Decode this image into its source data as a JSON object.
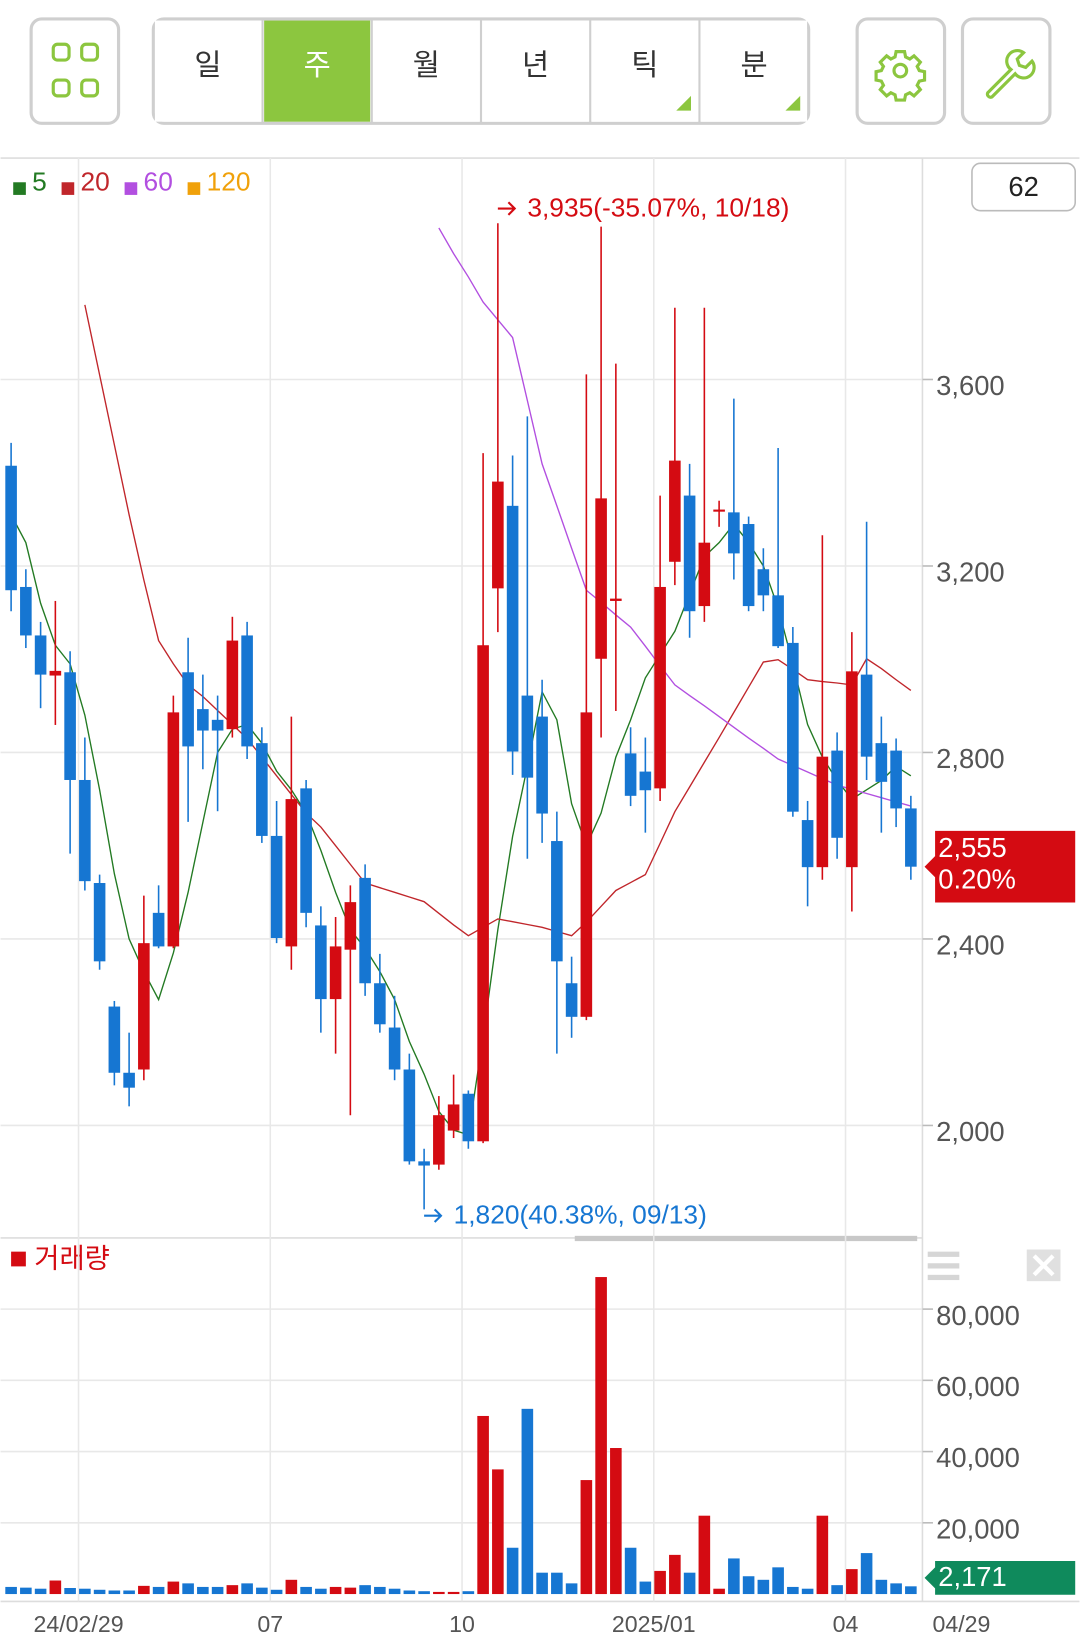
{
  "toolbar": {
    "tabs": [
      "일",
      "주",
      "월",
      "년",
      "틱",
      "분"
    ],
    "active": 1
  },
  "chart_data": {
    "type": "candlestick",
    "categories": [
      null,
      null,
      null,
      null,
      null,
      "24/02/29",
      null,
      null,
      null,
      null,
      null,
      null,
      null,
      null,
      null,
      null,
      null,
      null,
      "07",
      null,
      null,
      null,
      null,
      null,
      null,
      null,
      null,
      null,
      null,
      null,
      null,
      "10",
      null,
      null,
      null,
      null,
      null,
      null,
      null,
      null,
      null,
      null,
      null,
      null,
      "2025/01",
      null,
      null,
      null,
      null,
      null,
      null,
      null,
      null,
      null,
      null,
      null,
      null,
      "04",
      null,
      null,
      null,
      "04/29"
    ],
    "open": [
      3415,
      3155,
      3051,
      2965,
      2972,
      2741,
      2520,
      2255,
      2113,
      2120,
      2456,
      2384,
      2972,
      2893,
      2870,
      2850,
      3051,
      2820,
      2621,
      2384,
      2723,
      2429,
      2271,
      2377,
      2531,
      2305,
      2210,
      2120,
      1923,
      1916,
      1989,
      2068,
      1966,
      3152,
      3329,
      2922,
      2877,
      2610,
      2305,
      2233,
      3001,
      3125,
      2798,
      2759,
      2723,
      3209,
      3351,
      3114,
      3317,
      3315,
      3290,
      3193,
      3137,
      3035,
      2655,
      2554,
      2804,
      2554,
      2967,
      2820,
      2804,
      2680
    ],
    "high": [
      3464,
      3193,
      3080,
      3125,
      3017,
      2832,
      2538,
      2267,
      2199,
      2493,
      2515,
      2922,
      3046,
      2967,
      2922,
      3091,
      3080,
      2854,
      2696,
      2877,
      2741,
      2470,
      2447,
      2515,
      2560,
      2368,
      2278,
      2154,
      1950,
      2063,
      2109,
      2075,
      3442,
      3935,
      3437,
      3521,
      2956,
      2673,
      2362,
      3611,
      3928,
      3634,
      2854,
      2832,
      3351,
      3754,
      3419,
      3754,
      3340,
      3559,
      3306,
      3238,
      3453,
      3069,
      2696,
      3266,
      2843,
      3058,
      3295,
      2877,
      2830,
      2707
    ],
    "low": [
      3103,
      3024,
      2895,
      2859,
      2583,
      2504,
      2334,
      2086,
      2041,
      2097,
      2380,
      2380,
      2651,
      2764,
      2674,
      2832,
      2786,
      2606,
      2391,
      2334,
      2425,
      2199,
      2154,
      2022,
      2278,
      2199,
      2097,
      1916,
      1820,
      1905,
      1973,
      1950,
      1962,
      3058,
      2752,
      2572,
      2606,
      2154,
      2188,
      2226,
      2832,
      2889,
      2685,
      2628,
      2696,
      3159,
      3046,
      3080,
      3284,
      3171,
      3103,
      3103,
      3024,
      2662,
      2470,
      2527,
      2572,
      2459,
      2741,
      2628,
      2640,
      2527
    ],
    "close": [
      3148,
      3051,
      2967,
      2975,
      2741,
      2524,
      2352,
      2113,
      2081,
      2391,
      2384,
      2886,
      2813,
      2847,
      2847,
      3040,
      2813,
      2621,
      2402,
      2700,
      2456,
      2271,
      2384,
      2479,
      2305,
      2217,
      2120,
      1923,
      1914,
      2022,
      2045,
      1966,
      3030,
      3381,
      2802,
      2746,
      2669,
      2352,
      2233,
      2886,
      3345,
      3130,
      2707,
      2719,
      3155,
      3426,
      3103,
      3250,
      3321,
      3227,
      3114,
      3137,
      3028,
      2673,
      2554,
      2791,
      2617,
      2974,
      2791,
      2737,
      2680,
      2555
    ],
    "up_color": "#d40b12",
    "down_color": "#1676d2",
    "ylim": [
      1770,
      4075
    ],
    "yticks": [
      {
        "value": 2000,
        "label": "2,000"
      },
      {
        "value": 2400,
        "label": "2,400"
      },
      {
        "value": 2800,
        "label": "2,800"
      },
      {
        "value": 3200,
        "label": "3,200"
      },
      {
        "value": 3600,
        "label": "3,600"
      }
    ],
    "grid": true,
    "moving_averages": [
      {
        "name": "5",
        "color": "#237a23",
        "values": [
          3310,
          3250,
          3120,
          3030,
          2990,
          2880,
          2720,
          2540,
          2400,
          2330,
          2270,
          2370,
          2500,
          2650,
          2800,
          2850,
          2860,
          2820,
          2760,
          2720,
          2670,
          2590,
          2500,
          2420,
          2380,
          2330,
          2270,
          2180,
          2110,
          2030,
          1990,
          1980,
          2190,
          2420,
          2620,
          2770,
          2930,
          2870,
          2690,
          2600,
          2670,
          2790,
          2870,
          2960,
          3010,
          3060,
          3140,
          3220,
          3250,
          3290,
          3250,
          3200,
          3110,
          2990,
          2860,
          2790,
          2740,
          2700,
          2720,
          2740,
          2770,
          2750
        ]
      },
      {
        "name": "20",
        "color": "#c0262b",
        "values": [
          null,
          null,
          null,
          null,
          null,
          3760,
          3610,
          3460,
          3310,
          3170,
          3040,
          2990,
          2945,
          2920,
          2890,
          2860,
          2830,
          2790,
          2750,
          2710,
          2670,
          2640,
          2600,
          2560,
          2520,
          2510,
          2500,
          2490,
          2480,
          2455,
          2430,
          2407,
          2425,
          2443,
          2437,
          2431,
          2425,
          2416,
          2407,
          2436,
          2470,
          2504,
          2521,
          2538,
          2605,
          2673,
          2726,
          2779,
          2832,
          2886,
          2940,
          2994,
          2999,
          2978,
          2956,
          2952,
          2949,
          2945,
          3001,
          2980,
          2956,
          2933
        ]
      },
      {
        "name": "60",
        "color": "#b24fe0",
        "values": [
          null,
          null,
          null,
          null,
          null,
          null,
          null,
          null,
          null,
          null,
          null,
          null,
          null,
          null,
          null,
          null,
          null,
          null,
          null,
          null,
          null,
          null,
          null,
          null,
          null,
          null,
          null,
          null,
          null,
          3925,
          3870,
          3820,
          3766,
          3728,
          3690,
          3555,
          3419,
          3329,
          3238,
          3148,
          3122,
          3095,
          3069,
          3028,
          2986,
          2945,
          2922,
          2900,
          2877,
          2854,
          2831,
          2809,
          2786,
          2772,
          2758,
          2744,
          2730,
          2721,
          2712,
          2703,
          2694,
          2685
        ]
      },
      {
        "name": "120",
        "color": "#f0a10a",
        "values": [
          null,
          null,
          null,
          null,
          null,
          null,
          null,
          null,
          null,
          null,
          null,
          null,
          null,
          null,
          null,
          null,
          null,
          null,
          null,
          null,
          null,
          null,
          null,
          null,
          null,
          null,
          null,
          null,
          null,
          null,
          null,
          null,
          null,
          null,
          null,
          null,
          null,
          null,
          null,
          null,
          null,
          null,
          null,
          null,
          null,
          null,
          null,
          null,
          null,
          null,
          null,
          null,
          null,
          null,
          null,
          null,
          null,
          null,
          null,
          null,
          null,
          null
        ]
      }
    ],
    "annotations": [
      {
        "text": "3,935(-35.07%, 10/18)",
        "color": "#d40b12"
      },
      {
        "text": "1,820(40.38%, 09/13)",
        "color": "#1676d2"
      }
    ],
    "visible_count": 62,
    "current": {
      "price": {
        "value": 2555,
        "label": "2,555"
      },
      "change": "0.20%",
      "color": "#d40b12"
    },
    "volume": {
      "title": "거래량",
      "values": [
        2000,
        1800,
        1500,
        3800,
        1700,
        1500,
        1200,
        1000,
        1000,
        2300,
        2000,
        3500,
        3000,
        2000,
        2000,
        2500,
        3000,
        1800,
        1200,
        4000,
        2000,
        1500,
        2000,
        1800,
        2500,
        2000,
        1500,
        1000,
        800,
        600,
        600,
        800,
        50000,
        35000,
        13000,
        52000,
        6000,
        6000,
        3000,
        32000,
        89000,
        41000,
        13000,
        3500,
        6500,
        11000,
        6000,
        22000,
        1500,
        10000,
        5000,
        4000,
        7500,
        2000,
        1500,
        22000,
        2500,
        7000,
        11500,
        4000,
        3000,
        2171
      ],
      "ylim": [
        0,
        98500
      ],
      "yticks": [
        {
          "value": 20000,
          "label": "20,000"
        },
        {
          "value": 40000,
          "label": "40,000"
        },
        {
          "value": 60000,
          "label": "60,000"
        },
        {
          "value": 80000,
          "label": "80,000"
        }
      ],
      "current": {
        "value": 2171,
        "label": "2,171"
      },
      "current_color": "#0f8a5c"
    }
  }
}
